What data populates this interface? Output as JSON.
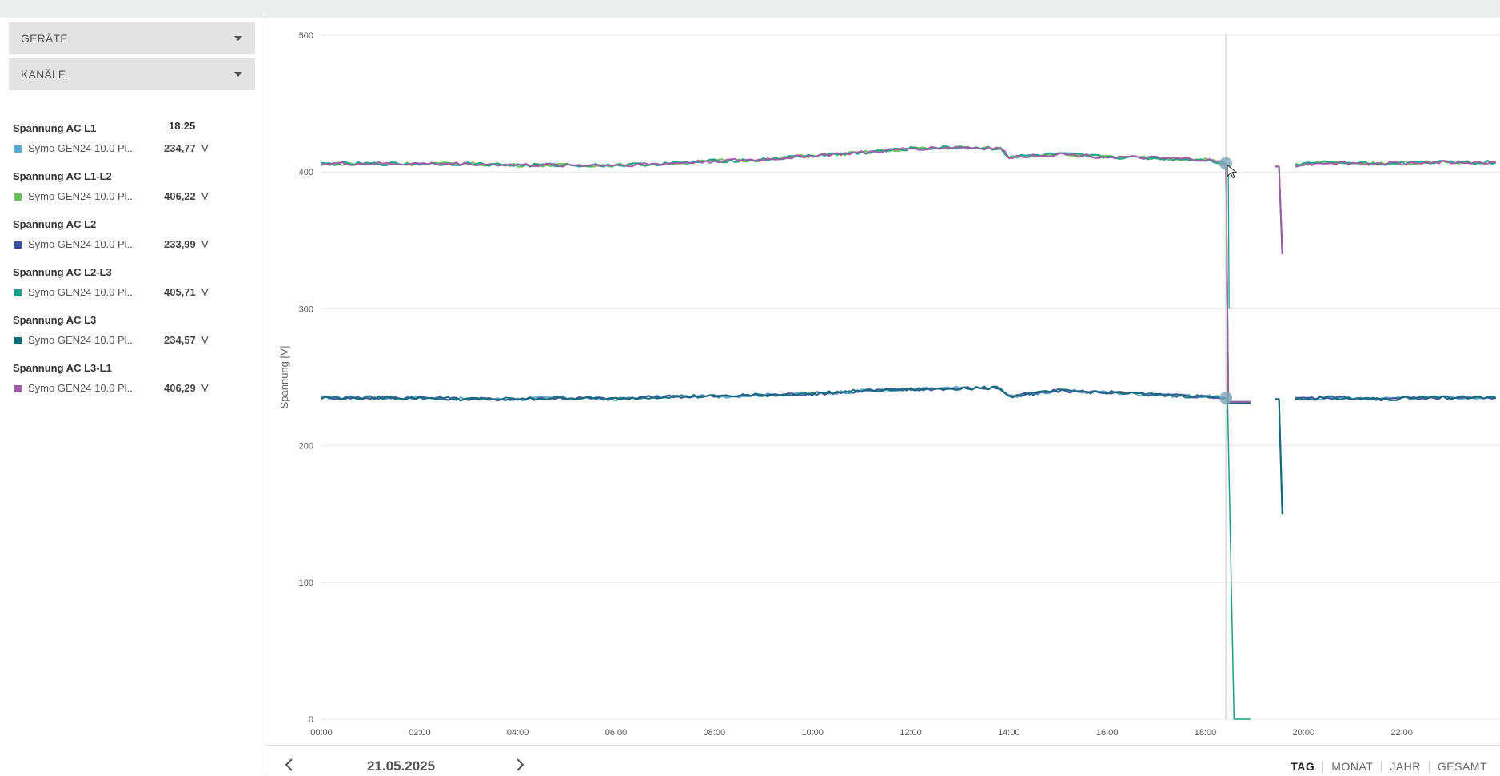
{
  "dropdowns": {
    "devices": "GERÄTE",
    "channels": "KANÄLE"
  },
  "cursor_time": "18:25",
  "channels": [
    {
      "title": "Spannung AC L1",
      "device": "Symo GEN24 10.0 Pl...",
      "value": "234,77",
      "unit": "V",
      "color": "#5aa9d2"
    },
    {
      "title": "Spannung AC L1-L2",
      "device": "Symo GEN24 10.0 Pl...",
      "value": "406,22",
      "unit": "V",
      "color": "#6abf5a"
    },
    {
      "title": "Spannung AC L2",
      "device": "Symo GEN24 10.0 Pl...",
      "value": "233,99",
      "unit": "V",
      "color": "#3a4f9a"
    },
    {
      "title": "Spannung AC L2-L3",
      "device": "Symo GEN24 10.0 Pl...",
      "value": "405,71",
      "unit": "V",
      "color": "#1a9e8a"
    },
    {
      "title": "Spannung AC L3",
      "device": "Symo GEN24 10.0 Pl...",
      "value": "234,57",
      "unit": "V",
      "color": "#136b78"
    },
    {
      "title": "Spannung AC L3-L1",
      "device": "Symo GEN24 10.0 Pl...",
      "value": "406,29",
      "unit": "V",
      "color": "#a15aa8"
    }
  ],
  "chart_data": {
    "type": "line",
    "ylabel": "Spannung [V]",
    "ylim": [
      0,
      500
    ],
    "yticks": [
      0,
      100,
      200,
      300,
      400,
      500
    ],
    "xlim": [
      "00:00",
      "24:00"
    ],
    "xticks": [
      "00:00",
      "02:00",
      "04:00",
      "06:00",
      "08:00",
      "10:00",
      "12:00",
      "14:00",
      "16:00",
      "18:00",
      "20:00",
      "22:00"
    ],
    "grid": true,
    "cursor": "18:25",
    "series": [
      {
        "name": "Spannung AC L1",
        "color": "#5aa9d2",
        "group": "phase"
      },
      {
        "name": "Spannung AC L2",
        "color": "#3a4f9a",
        "group": "phase"
      },
      {
        "name": "Spannung AC L3",
        "color": "#136b78",
        "group": "phase"
      },
      {
        "name": "Spannung AC L1-L2",
        "color": "#6abf5a",
        "group": "line"
      },
      {
        "name": "Spannung AC L2-L3",
        "color": "#1a9e8a",
        "group": "line"
      },
      {
        "name": "Spannung AC L3-L1",
        "color": "#a15aa8",
        "group": "line"
      }
    ],
    "profile_phase": [
      [
        "00:00",
        235
      ],
      [
        "01:00",
        235
      ],
      [
        "02:00",
        235
      ],
      [
        "03:00",
        234
      ],
      [
        "04:00",
        234
      ],
      [
        "05:00",
        235
      ],
      [
        "06:00",
        234
      ],
      [
        "07:00",
        236
      ],
      [
        "08:00",
        236
      ],
      [
        "09:00",
        237
      ],
      [
        "10:00",
        238
      ],
      [
        "11:00",
        240
      ],
      [
        "12:00",
        241
      ],
      [
        "13:00",
        242
      ],
      [
        "13:50",
        242
      ],
      [
        "14:00",
        236
      ],
      [
        "15:00",
        240
      ],
      [
        "16:00",
        239
      ],
      [
        "17:00",
        237
      ],
      [
        "18:00",
        236
      ],
      [
        "18:25",
        234.8
      ]
    ],
    "profile_line": [
      [
        "00:00",
        406
      ],
      [
        "01:00",
        406
      ],
      [
        "02:00",
        406
      ],
      [
        "03:00",
        406
      ],
      [
        "04:00",
        405
      ],
      [
        "05:00",
        405
      ],
      [
        "06:00",
        405
      ],
      [
        "07:00",
        406
      ],
      [
        "08:00",
        408
      ],
      [
        "09:00",
        409
      ],
      [
        "10:00",
        412
      ],
      [
        "11:00",
        414
      ],
      [
        "12:00",
        417
      ],
      [
        "13:00",
        418
      ],
      [
        "13:50",
        417
      ],
      [
        "14:00",
        411
      ],
      [
        "15:00",
        413
      ],
      [
        "16:00",
        411
      ],
      [
        "17:00",
        410
      ],
      [
        "18:00",
        409
      ],
      [
        "18:25",
        406.2
      ]
    ],
    "evening_phase": [
      [
        "19:50",
        234
      ],
      [
        "20:30",
        235
      ],
      [
        "21:30",
        234
      ],
      [
        "22:30",
        235
      ],
      [
        "23:55",
        235
      ]
    ],
    "evening_line": [
      [
        "19:50",
        405
      ],
      [
        "20:30",
        407
      ],
      [
        "21:30",
        406
      ],
      [
        "22:30",
        407
      ],
      [
        "23:55",
        407
      ]
    ]
  },
  "bottom": {
    "date": "21.05.2025",
    "periods": [
      "TAG",
      "MONAT",
      "JAHR",
      "GESAMT"
    ],
    "active_period": "TAG"
  }
}
